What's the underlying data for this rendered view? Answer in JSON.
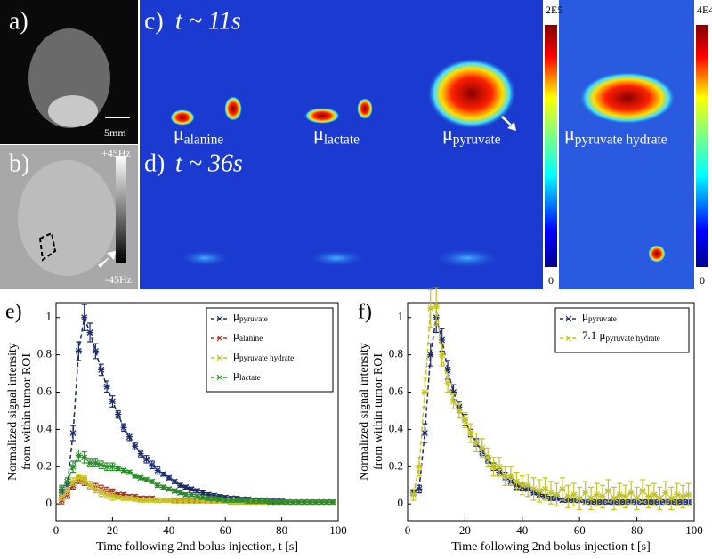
{
  "figure": {
    "a": {
      "label": "a)",
      "scale": "5mm"
    },
    "b": {
      "label": "b)",
      "max": "+45Hz",
      "min": "-45Hz"
    },
    "c": {
      "label": "c)",
      "time": "t ~ 11s"
    },
    "d": {
      "label": "d)",
      "time": "t ~ 36s"
    },
    "maps": [
      "μalanine",
      "μlactate",
      "μpyruvate",
      "μpyruvate hydrate"
    ],
    "colorbars": [
      {
        "max": "2E5",
        "min": "0"
      },
      {
        "max": "4E4",
        "min": "0"
      }
    ]
  },
  "chart_data": [
    {
      "type": "line",
      "panel_label": "e)",
      "xlabel": "Time following 2nd bolus injection, t [s]",
      "ylabel": [
        "Normalized signal intensity",
        "from within tumor ROI"
      ],
      "legend": "upper right",
      "xlim": [
        0,
        100
      ],
      "xticks": [
        0,
        20,
        40,
        60,
        80,
        100
      ],
      "ylim": [
        -0.09,
        1.08
      ],
      "yticks": [
        0,
        0.2,
        0.4,
        0.6,
        0.8,
        1
      ],
      "x": [
        2,
        4,
        6,
        8,
        10,
        12,
        14,
        16,
        18,
        20,
        22,
        24,
        26,
        28,
        30,
        32,
        34,
        36,
        38,
        40,
        42,
        44,
        46,
        48,
        50,
        52,
        54,
        56,
        58,
        60,
        62,
        64,
        66,
        68,
        70,
        72,
        74,
        76,
        78,
        80,
        82,
        84,
        86,
        88,
        90,
        92,
        94,
        96,
        98
      ],
      "series": [
        {
          "name": "μpyruvate",
          "color": "#1c2c6c",
          "values": [
            0.06,
            0.1,
            0.38,
            0.82,
            1.0,
            0.92,
            0.82,
            0.72,
            0.63,
            0.55,
            0.48,
            0.41,
            0.36,
            0.31,
            0.27,
            0.24,
            0.21,
            0.18,
            0.16,
            0.14,
            0.12,
            0.1,
            0.09,
            0.08,
            0.07,
            0.06,
            0.05,
            0.045,
            0.04,
            0.035,
            0.03,
            0.03,
            0.025,
            0.025,
            0.02,
            0.02,
            0.02,
            0.015,
            0.015,
            0.015,
            0.01,
            0.01,
            0.01,
            0.01,
            0.01,
            0.01,
            0.01,
            0.01,
            0.01
          ],
          "errors": [
            0.01,
            0.02,
            0.04,
            0.05,
            0.07,
            0.05,
            0.04,
            0.03,
            0.03,
            0.03,
            0.02,
            0.02,
            0.02,
            0.02,
            0.02,
            0.02,
            0.02,
            0.02,
            0.01,
            0.01,
            0.01,
            0.01,
            0.01,
            0.01,
            0.01,
            0.01,
            0.01,
            0.01,
            0.01,
            0.01,
            0.01,
            0.01,
            0.01,
            0.01,
            0.01,
            0.01,
            0.01,
            0.01,
            0.01,
            0.01,
            0.01,
            0.01,
            0.01,
            0.01,
            0.01,
            0.01,
            0.01,
            0.01,
            0.01
          ]
        },
        {
          "name": "μalanine",
          "color": "#b0301e",
          "values": [
            0.02,
            0.05,
            0.1,
            0.13,
            0.12,
            0.1,
            0.09,
            0.08,
            0.07,
            0.06,
            0.05,
            0.05,
            0.04,
            0.04,
            0.03,
            0.03,
            0.03,
            0.02,
            0.02,
            0.02,
            0.02,
            0.02,
            0.02,
            0.02,
            0.02,
            0.02,
            0.02,
            0.02,
            0.02,
            0.02,
            0.01,
            0.01,
            0.01,
            0.01,
            0.01,
            0.01,
            0.01,
            0.01,
            0.01,
            0.01,
            0.01,
            0.01,
            0.01,
            0.01,
            0.01,
            0.01,
            0.01,
            0.01,
            0.01
          ],
          "errors": [
            0.02,
            0.02,
            0.02,
            0.02,
            0.02,
            0.02,
            0.02,
            0.02,
            0.02,
            0.02,
            0.01,
            0.01,
            0.01,
            0.01,
            0.01,
            0.01,
            0.01,
            0.01,
            0.01,
            0.01,
            0.01,
            0.01,
            0.01,
            0.01,
            0.01,
            0.01,
            0.01,
            0.01,
            0.01,
            0.01,
            0.01,
            0.01,
            0.01,
            0.01,
            0.01,
            0.01,
            0.01,
            0.01,
            0.01,
            0.01,
            0.01,
            0.01,
            0.01,
            0.01,
            0.01,
            0.01,
            0.01,
            0.01,
            0.01
          ]
        },
        {
          "name": "μpyruvate hydrate",
          "color": "#c4c41c",
          "values": [
            0.04,
            0.07,
            0.12,
            0.14,
            0.13,
            0.1,
            0.08,
            0.06,
            0.05,
            0.04,
            0.035,
            0.03,
            0.03,
            0.025,
            0.02,
            0.02,
            0.02,
            0.02,
            0.02,
            0.02,
            0.015,
            0.015,
            0.015,
            0.015,
            0.015,
            0.015,
            0.015,
            0.015,
            0.015,
            0.015,
            0.01,
            0.01,
            0.01,
            0.01,
            0.01,
            0.01,
            0.01,
            0.01,
            0.01,
            0.01,
            0.01,
            0.01,
            0.01,
            0.01,
            0.01,
            0.01,
            0.01,
            0.01,
            0.01
          ],
          "errors": [
            0.02,
            0.02,
            0.02,
            0.02,
            0.02,
            0.02,
            0.02,
            0.02,
            0.02,
            0.02,
            0.01,
            0.01,
            0.01,
            0.01,
            0.01,
            0.01,
            0.01,
            0.01,
            0.01,
            0.01,
            0.01,
            0.01,
            0.01,
            0.01,
            0.01,
            0.01,
            0.01,
            0.01,
            0.01,
            0.01,
            0.01,
            0.01,
            0.01,
            0.01,
            0.01,
            0.01,
            0.01,
            0.01,
            0.01,
            0.01,
            0.01,
            0.01,
            0.01,
            0.01,
            0.01,
            0.01,
            0.01,
            0.01,
            0.01
          ]
        },
        {
          "name": "μlactate",
          "color": "#2a8c2a",
          "values": [
            0.08,
            0.12,
            0.2,
            0.26,
            0.25,
            0.22,
            0.22,
            0.21,
            0.2,
            0.2,
            0.19,
            0.18,
            0.17,
            0.15,
            0.14,
            0.13,
            0.12,
            0.1,
            0.09,
            0.08,
            0.07,
            0.06,
            0.05,
            0.05,
            0.04,
            0.035,
            0.03,
            0.03,
            0.025,
            0.02,
            0.02,
            0.02,
            0.02,
            0.015,
            0.015,
            0.015,
            0.015,
            0.01,
            0.01,
            0.01,
            0.01,
            0.01,
            0.01,
            0.01,
            0.01,
            0.01,
            0.01,
            0.01,
            0.01
          ],
          "errors": [
            0.02,
            0.02,
            0.03,
            0.03,
            0.03,
            0.02,
            0.02,
            0.02,
            0.02,
            0.02,
            0.01,
            0.01,
            0.01,
            0.01,
            0.01,
            0.01,
            0.01,
            0.01,
            0.01,
            0.01,
            0.01,
            0.01,
            0.01,
            0.01,
            0.01,
            0.01,
            0.01,
            0.01,
            0.01,
            0.01,
            0.01,
            0.01,
            0.01,
            0.01,
            0.01,
            0.01,
            0.01,
            0.01,
            0.01,
            0.01,
            0.01,
            0.01,
            0.01,
            0.01,
            0.01,
            0.01,
            0.01,
            0.01,
            0.01
          ]
        }
      ]
    },
    {
      "type": "line",
      "panel_label": "f)",
      "xlabel": "Time following 2nd bolus injection t [s]",
      "ylabel": [
        "Normalized signal intensity",
        "from within tumor ROI"
      ],
      "legend": "upper right",
      "xlim": [
        0,
        100
      ],
      "xticks": [
        0,
        20,
        40,
        60,
        80,
        100
      ],
      "ylim": [
        -0.09,
        1.08
      ],
      "yticks": [
        0,
        0.2,
        0.4,
        0.6,
        0.8,
        1
      ],
      "x": [
        2,
        4,
        6,
        8,
        10,
        12,
        14,
        16,
        18,
        20,
        22,
        24,
        26,
        28,
        30,
        32,
        34,
        36,
        38,
        40,
        42,
        44,
        46,
        48,
        50,
        52,
        54,
        56,
        58,
        60,
        62,
        64,
        66,
        68,
        70,
        72,
        74,
        76,
        78,
        80,
        82,
        84,
        86,
        88,
        90,
        92,
        94,
        96,
        98
      ],
      "series": [
        {
          "name": "μpyruvate",
          "color": "#1c2c6c",
          "values": [
            0.06,
            0.08,
            0.38,
            0.8,
            1.0,
            0.88,
            0.72,
            0.6,
            0.52,
            0.45,
            0.38,
            0.33,
            0.28,
            0.24,
            0.2,
            0.17,
            0.15,
            0.12,
            0.1,
            0.09,
            0.08,
            0.06,
            0.05,
            0.04,
            0.03,
            0.03,
            0.02,
            0.02,
            0.02,
            0.02,
            0.01,
            0.01,
            0.01,
            0.01,
            0.01,
            0.01,
            0.01,
            0.01,
            0.01,
            0.01,
            0.01,
            0.01,
            0.01,
            0.01,
            0.01,
            0.01,
            0.01,
            0.01,
            0.01
          ],
          "errors": [
            0.01,
            0.02,
            0.05,
            0.06,
            0.08,
            0.06,
            0.05,
            0.04,
            0.03,
            0.03,
            0.02,
            0.02,
            0.02,
            0.02,
            0.02,
            0.02,
            0.02,
            0.02,
            0.02,
            0.02,
            0.01,
            0.01,
            0.01,
            0.01,
            0.01,
            0.01,
            0.01,
            0.01,
            0.01,
            0.01,
            0.01,
            0.01,
            0.01,
            0.01,
            0.01,
            0.01,
            0.01,
            0.01,
            0.01,
            0.01,
            0.01,
            0.01,
            0.01,
            0.01,
            0.01,
            0.01,
            0.01,
            0.01,
            0.01
          ]
        },
        {
          "name": "7.1 μpyruvate hydrate",
          "color": "#c4c41c",
          "values": [
            0.05,
            0.2,
            0.6,
            1.05,
            1.06,
            0.8,
            0.65,
            0.55,
            0.5,
            0.45,
            0.38,
            0.33,
            0.3,
            0.25,
            0.2,
            0.2,
            0.15,
            0.15,
            0.12,
            0.1,
            0.1,
            0.08,
            0.07,
            0.08,
            0.06,
            0.05,
            0.08,
            0.04,
            0.05,
            0.03,
            0.06,
            0.03,
            0.05,
            0.04,
            0.07,
            0.03,
            0.05,
            0.04,
            0.06,
            0.03,
            0.07,
            0.04,
            0.05,
            0.03,
            0.06,
            0.03,
            0.05,
            0.04,
            0.05
          ],
          "errors": [
            0.03,
            0.05,
            0.08,
            0.1,
            0.1,
            0.06,
            0.05,
            0.04,
            0.04,
            0.04,
            0.05,
            0.05,
            0.05,
            0.05,
            0.05,
            0.05,
            0.05,
            0.05,
            0.05,
            0.05,
            0.06,
            0.06,
            0.06,
            0.06,
            0.06,
            0.06,
            0.06,
            0.06,
            0.06,
            0.06,
            0.06,
            0.06,
            0.06,
            0.06,
            0.06,
            0.06,
            0.06,
            0.06,
            0.06,
            0.06,
            0.06,
            0.06,
            0.06,
            0.06,
            0.06,
            0.06,
            0.06,
            0.06,
            0.06
          ]
        }
      ]
    }
  ]
}
